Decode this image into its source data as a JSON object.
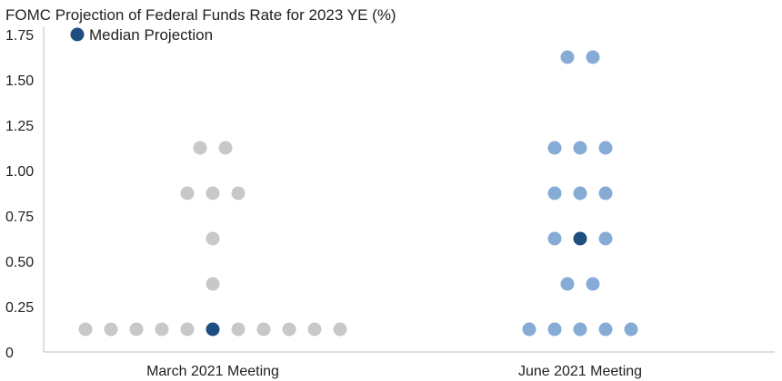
{
  "chart_data": {
    "type": "scatter",
    "title": "FOMC Projection of Federal Funds Rate for 2023 YE (%)",
    "ylim": [
      0,
      1.75
    ],
    "yticks": [
      "1.75",
      "1.50",
      "1.25",
      "1.00",
      "0.75",
      "0.50",
      "0.25",
      "0"
    ],
    "ytick_values": [
      1.75,
      1.5,
      1.25,
      1.0,
      0.75,
      0.5,
      0.25,
      0
    ],
    "categories": [
      "March 2021 Meeting",
      "June 2021 Meeting"
    ],
    "legend": {
      "label": "Median Projection",
      "placement": "top-left",
      "color": "#1f4e80"
    },
    "series": [
      {
        "category": "March 2021 Meeting",
        "color": "#c8c8c8",
        "dots": [
          {
            "y": 1.125,
            "count": 2
          },
          {
            "y": 0.875,
            "count": 3
          },
          {
            "y": 0.625,
            "count": 1
          },
          {
            "y": 0.375,
            "count": 1
          },
          {
            "y": 0.125,
            "count": 11
          }
        ],
        "median": 0.125
      },
      {
        "category": "June 2021 Meeting",
        "color": "#86acd6",
        "dots": [
          {
            "y": 1.625,
            "count": 2
          },
          {
            "y": 1.125,
            "count": 3
          },
          {
            "y": 0.875,
            "count": 3
          },
          {
            "y": 0.625,
            "count": 3
          },
          {
            "y": 0.375,
            "count": 2
          },
          {
            "y": 0.125,
            "count": 5
          }
        ],
        "median": 0.625
      }
    ]
  }
}
